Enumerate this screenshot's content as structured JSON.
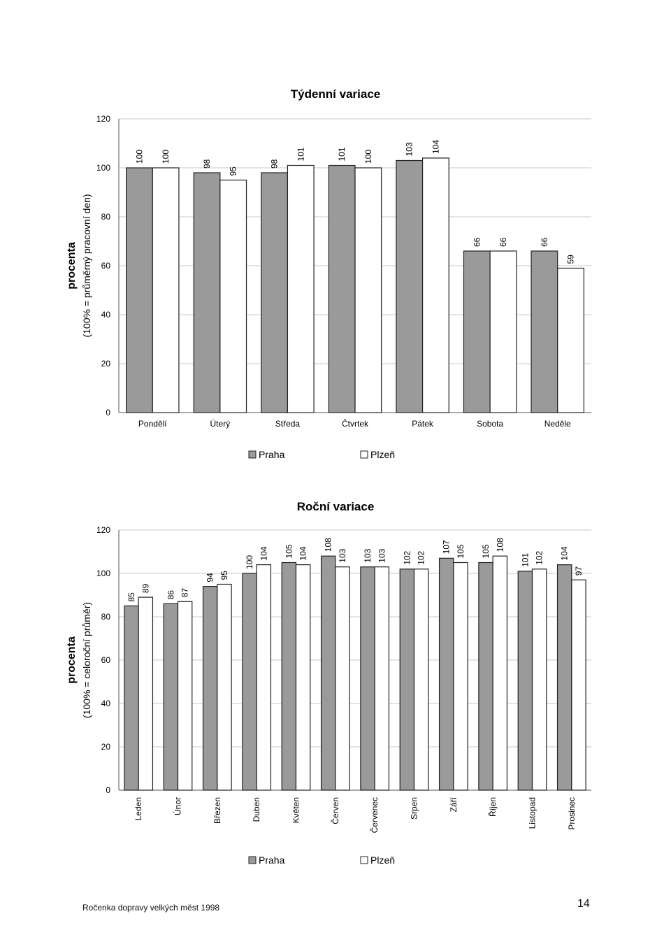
{
  "chart_data": [
    {
      "type": "bar",
      "title": "Týdenní variace",
      "ylabel": "procenta",
      "ylabel_note": "(100% = průměrný pracovní den)",
      "ylim": [
        0,
        120
      ],
      "yticks": [
        "0",
        "20",
        "40",
        "60",
        "80",
        "100",
        "120"
      ],
      "categories": [
        "Pondělí",
        "Úterý",
        "Středa",
        "Čtvrtek",
        "Pátek",
        "Sobota",
        "Neděle"
      ],
      "series": [
        {
          "name": "Praha",
          "color": "#9a9a9a",
          "values": [
            100,
            98,
            98,
            101,
            103,
            66,
            66
          ]
        },
        {
          "name": "Plzeň",
          "color": "#ffffff",
          "values": [
            100,
            95,
            101,
            100,
            104,
            66,
            59
          ]
        }
      ],
      "legend_position": "bottom",
      "grid": true
    },
    {
      "type": "bar",
      "title": "Roční variace",
      "ylabel": "procenta",
      "ylabel_note": "(100% = celoroční průměr)",
      "ylim": [
        0,
        120
      ],
      "yticks": [
        "0",
        "20",
        "40",
        "60",
        "80",
        "100",
        "120"
      ],
      "categories": [
        "Leden",
        "Únor",
        "Březen",
        "Duben",
        "Květen",
        "Červen",
        "Červenec",
        "Srpen",
        "Září",
        "Říjen",
        "Listopad",
        "Prosinec"
      ],
      "series": [
        {
          "name": "Praha",
          "color": "#9a9a9a",
          "values": [
            85,
            86,
            94,
            100,
            105,
            108,
            103,
            102,
            107,
            105,
            101,
            104
          ]
        },
        {
          "name": "Plzeň",
          "color": "#ffffff",
          "values": [
            89,
            87,
            95,
            104,
            104,
            103,
            103,
            102,
            105,
            108,
            102,
            97
          ]
        }
      ],
      "legend_position": "bottom",
      "grid": true
    }
  ],
  "footer": {
    "left": "Ročenka dopravy velkých měst 1998",
    "page": "14"
  }
}
